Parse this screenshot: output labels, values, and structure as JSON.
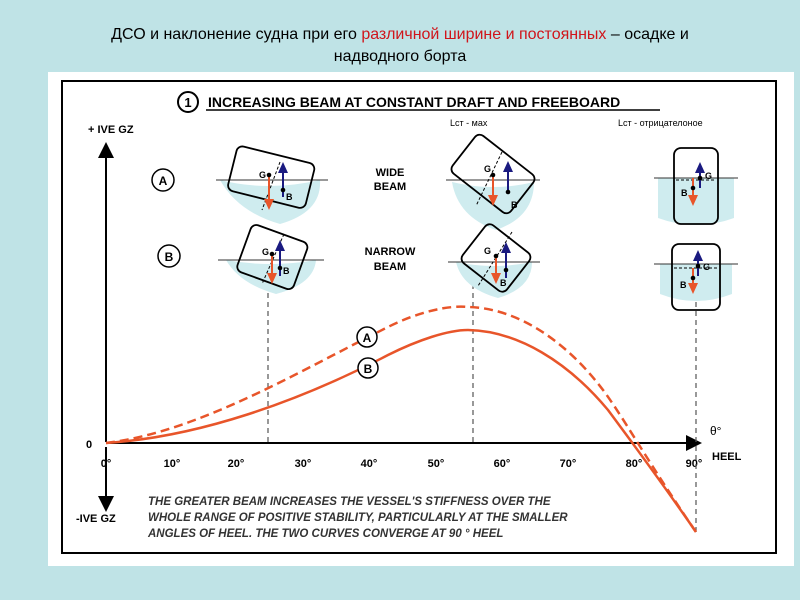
{
  "slide": {
    "title_line1_a": "ДСО и наклонение  судна при его ",
    "title_line1_red": "различной  ширине  и постоянных",
    "title_line1_b": " – осадке и",
    "title_line2": "надводного борта"
  },
  "diagram": {
    "number": "1",
    "heading": "INCREASING BEAM AT CONSTANT DRAFT AND FREEBOARD",
    "label_max": "Lст -  мах",
    "label_negative": "Lст - отрицателоное",
    "y_pos_label": "+ IVE GZ",
    "y_neg_label": "-IVE GZ",
    "zero_label": "0",
    "heel_label": "HEEL",
    "theta_label": "θ°",
    "ticks": [
      "0°",
      "10°",
      "20°",
      "30°",
      "40°",
      "50°",
      "60°",
      "70°",
      "80°",
      "90°"
    ],
    "row_a_letter": "A",
    "row_b_letter": "B",
    "wide_beam_line1": "WIDE",
    "wide_beam_line2": "BEAM",
    "narrow_beam_line1": "NARROW",
    "narrow_beam_line2": "BEAM",
    "curve_a_label": "A",
    "curve_b_label": "B",
    "point_g": "G",
    "point_b": "B",
    "caption_line1": "THE GREATER BEAM INCREASES THE VESSEL'S STIFFNESS OVER THE",
    "caption_line2": "WHOLE RANGE OF POSITIVE STABILITY, PARTICULARLY AT THE SMALLER",
    "caption_line3": "ANGLES OF HEEL. THE TWO CURVES CONVERGE AT 90 ° HEEL"
  },
  "colors": {
    "curve": "#e8552a",
    "force_up": "#1a1a80",
    "force_down": "#e8552a",
    "water": "#cfecef",
    "title_red": "#d0151b"
  }
}
